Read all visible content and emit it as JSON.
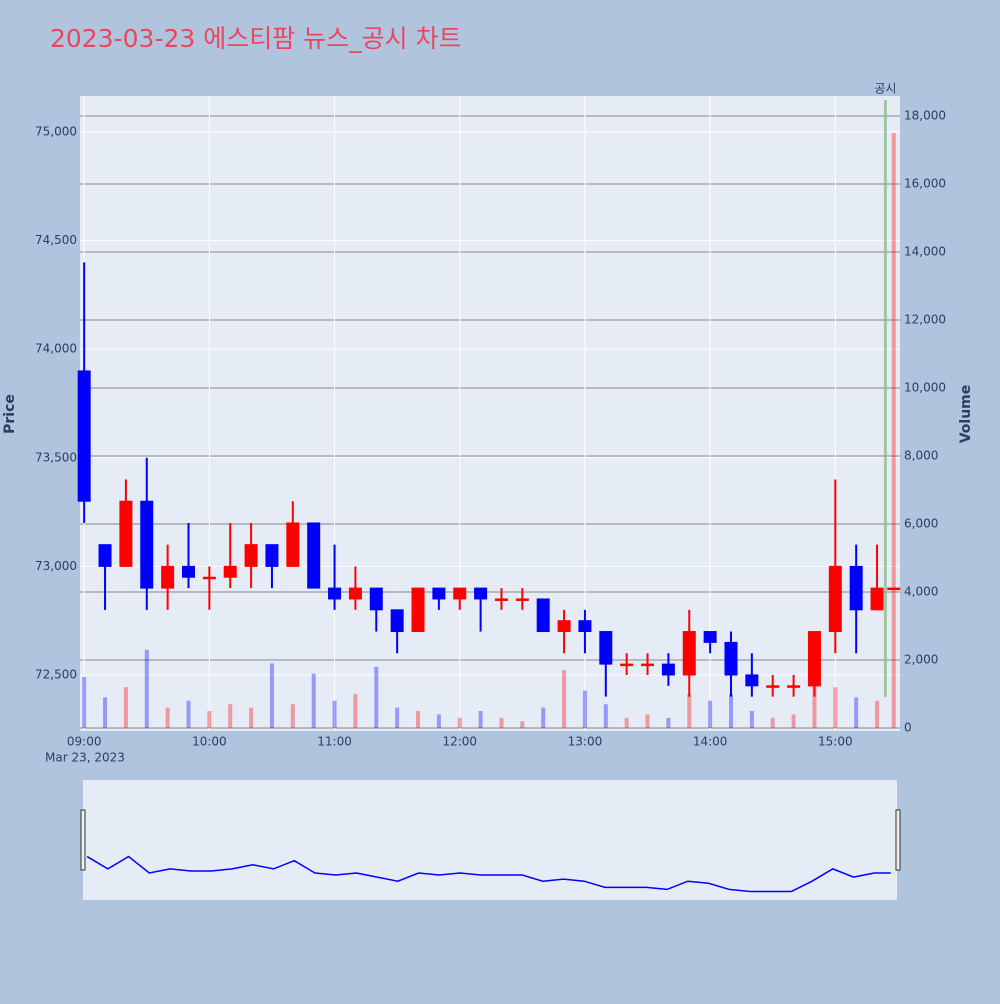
{
  "chart_data": {
    "type": "candlestick",
    "title": "2023-03-23 에스티팜 뉴스_공시 차트",
    "x": [
      "09:00",
      "09:10",
      "09:20",
      "09:30",
      "09:40",
      "09:50",
      "10:00",
      "10:10",
      "10:20",
      "10:30",
      "10:40",
      "10:50",
      "11:00",
      "11:10",
      "11:20",
      "11:30",
      "11:40",
      "11:50",
      "12:00",
      "12:10",
      "12:20",
      "12:30",
      "12:40",
      "12:50",
      "13:00",
      "13:10",
      "13:20",
      "13:30",
      "13:40",
      "13:50",
      "14:00",
      "14:10",
      "14:20",
      "14:30",
      "14:40",
      "14:50",
      "15:00",
      "15:10",
      "15:20",
      "15:28"
    ],
    "open": [
      73900,
      73100,
      73000,
      73300,
      72900,
      73000,
      72950,
      72950,
      73000,
      73100,
      73000,
      73200,
      72900,
      72850,
      72900,
      72800,
      72700,
      72900,
      72850,
      72900,
      72850,
      72850,
      72850,
      72700,
      72750,
      72700,
      72550,
      72550,
      72550,
      72500,
      72700,
      72650,
      72500,
      72450,
      72450,
      72450,
      72700,
      73000,
      72800,
      72900
    ],
    "high": [
      74400,
      73100,
      73400,
      73500,
      73100,
      73200,
      73000,
      73200,
      73200,
      73100,
      73300,
      73200,
      73100,
      73000,
      72900,
      72800,
      72900,
      72900,
      72900,
      72900,
      72900,
      72900,
      72850,
      72800,
      72800,
      72700,
      72600,
      72600,
      72600,
      72800,
      72700,
      72700,
      72600,
      72500,
      72500,
      72700,
      73400,
      73100,
      73100,
      72900
    ],
    "low": [
      73200,
      72800,
      73000,
      72800,
      72800,
      72900,
      72800,
      72900,
      72900,
      72900,
      73000,
      72900,
      72800,
      72800,
      72700,
      72600,
      72700,
      72800,
      72800,
      72700,
      72800,
      72800,
      72700,
      72600,
      72600,
      72400,
      72500,
      72500,
      72450,
      72400,
      72600,
      72400,
      72400,
      72400,
      72400,
      72400,
      72600,
      72600,
      72800,
      72900
    ],
    "close": [
      73300,
      73000,
      73300,
      72900,
      73000,
      72950,
      72950,
      73000,
      73100,
      73000,
      73200,
      72900,
      72850,
      72900,
      72800,
      72700,
      72900,
      72850,
      72900,
      72850,
      72850,
      72850,
      72700,
      72750,
      72700,
      72550,
      72550,
      72550,
      72500,
      72700,
      72650,
      72500,
      72450,
      72450,
      72450,
      72700,
      73000,
      72800,
      72900,
      72900
    ],
    "volume": [
      1500,
      900,
      1200,
      2300,
      600,
      800,
      500,
      700,
      600,
      1900,
      700,
      1600,
      800,
      1000,
      1800,
      600,
      500,
      400,
      300,
      500,
      300,
      200,
      600,
      1700,
      1100,
      700,
      300,
      400,
      300,
      1000,
      800,
      1000,
      500,
      300,
      400,
      2000,
      1200,
      900,
      800,
      17500
    ],
    "increasing_color": "#ff0000",
    "decreasing_color": "#0000ff",
    "xlim": [
      "08:58",
      "15:31"
    ],
    "xticks": [
      "09:00",
      "10:00",
      "11:00",
      "12:00",
      "13:00",
      "14:00",
      "15:00"
    ],
    "x_date_label": "Mar 23, 2023",
    "ylabel": "Price",
    "y2label": "Volume",
    "ylim": [
      72242,
      75166
    ],
    "yticks": [
      {
        "value": 72500,
        "label": "72,500"
      },
      {
        "value": 73000,
        "label": "73,000"
      },
      {
        "value": 73500,
        "label": "73,500"
      },
      {
        "value": 74000,
        "label": "74,000"
      },
      {
        "value": 74500,
        "label": "74,500"
      },
      {
        "value": 75000,
        "label": "75,000"
      }
    ],
    "y2lim": [
      -88,
      18588
    ],
    "y2ticks": [
      0,
      {
        "value": 2000,
        "label": "2,000"
      },
      {
        "value": 4000,
        "label": "4,000"
      },
      {
        "value": 6000,
        "label": "6,000"
      },
      {
        "value": 8000,
        "label": "8,000"
      },
      {
        "value": 10000,
        "label": "10,000"
      },
      {
        "value": 12000,
        "label": "12,000"
      },
      {
        "value": 14000,
        "label": "14,000"
      },
      {
        "value": 16000,
        "label": "16,000"
      },
      {
        "value": 18000,
        "label": "18,000"
      }
    ],
    "annotations": [
      {
        "x": "15:24",
        "text": "공시"
      }
    ]
  }
}
